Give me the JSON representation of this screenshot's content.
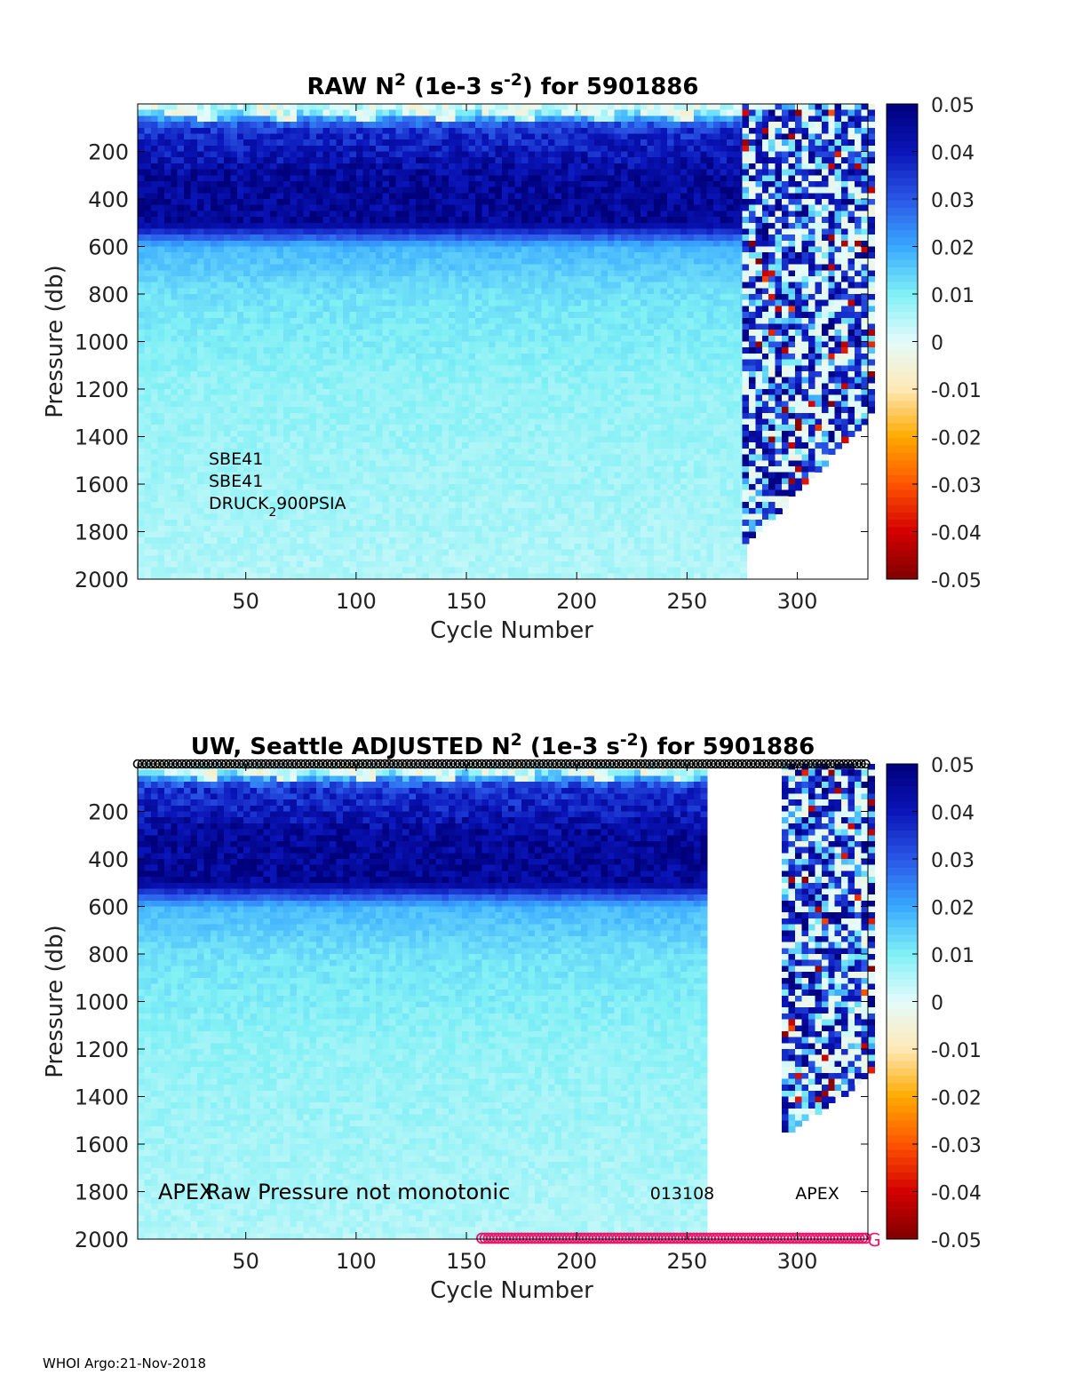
{
  "footer": "WHOI Argo:21-Nov-2018",
  "colorbar": {
    "min": -0.05,
    "max": 0.05,
    "tick_labels": [
      "0.05",
      "0.04",
      "0.03",
      "0.02",
      "0.01",
      "0",
      "-0.01",
      "-0.02",
      "-0.03",
      "-0.04",
      "-0.05"
    ],
    "colors": [
      "#7f0000",
      "#d40000",
      "#ff5500",
      "#ffaa00",
      "#ffe9b8",
      "#e4fbfb",
      "#7ff0f5",
      "#38a8ff",
      "#2a56e6",
      "#0a14b8",
      "#00007a"
    ]
  },
  "chart_data": [
    {
      "type": "heatmap",
      "title_parts": [
        "RAW N",
        "2",
        " (1e-3 s",
        "-2",
        ") for 5901886"
      ],
      "xlabel": "Cycle Number",
      "ylabel": "Pressure (db)",
      "xlim": [
        1,
        332
      ],
      "ylim": [
        2000,
        0
      ],
      "x_ticks": [
        50,
        100,
        150,
        200,
        250,
        300
      ],
      "y_ticks": [
        200,
        400,
        600,
        800,
        1000,
        1200,
        1400,
        1600,
        1800,
        2000
      ],
      "annotations": [
        {
          "text": "SBE41"
        },
        {
          "text": "SBE41"
        },
        {
          "text_parts": [
            "DRUCK",
            "2",
            "900PSIA"
          ]
        }
      ],
      "data_regions": [
        {
          "from_cycle": 1,
          "to_cycle": 274,
          "max_pressure": 2000
        },
        {
          "from_cycle": 275,
          "to_cycle": 332,
          "max_pressure_start": 1850,
          "max_pressure_end": 1300
        }
      ],
      "value_profile": [
        {
          "pressure": 0,
          "value": -0.002
        },
        {
          "pressure": 100,
          "value": 0.035
        },
        {
          "pressure": 300,
          "value": 0.045
        },
        {
          "pressure": 500,
          "value": 0.046
        },
        {
          "pressure": 600,
          "value": 0.018
        },
        {
          "pressure": 800,
          "value": 0.012
        },
        {
          "pressure": 1200,
          "value": 0.008
        },
        {
          "pressure": 2000,
          "value": 0.005
        }
      ]
    },
    {
      "type": "heatmap",
      "title_parts": [
        "UW, Seattle  ADJUSTED N",
        "2",
        " (1e-3 s",
        "-2",
        ") for 5901886"
      ],
      "xlabel": "Cycle Number",
      "ylabel": "Pressure (db)",
      "xlim": [
        1,
        332
      ],
      "ylim": [
        2000,
        0
      ],
      "x_ticks": [
        50,
        100,
        150,
        200,
        250,
        300
      ],
      "y_ticks": [
        200,
        400,
        600,
        800,
        1000,
        1200,
        1400,
        1600,
        1800,
        2000
      ],
      "annotations": [
        {
          "text": "APEX"
        },
        {
          "text": "Raw Pressure not monotonic"
        },
        {
          "text": "013108"
        },
        {
          "text": "APEX"
        },
        {
          "text": "G"
        }
      ],
      "data_regions": [
        {
          "from_cycle": 1,
          "to_cycle": 258,
          "max_pressure": 2000
        },
        {
          "from_cycle": 293,
          "to_cycle": 332,
          "max_pressure_start": 1550,
          "max_pressure_end": 1300
        }
      ],
      "top_markers": {
        "from_cycle": 1,
        "to_cycle": 332,
        "pressure": 0
      },
      "bottom_markers": {
        "from_cycle": 157,
        "to_cycle": 332,
        "pressure": 2000,
        "color": "#e8186d"
      }
    }
  ]
}
